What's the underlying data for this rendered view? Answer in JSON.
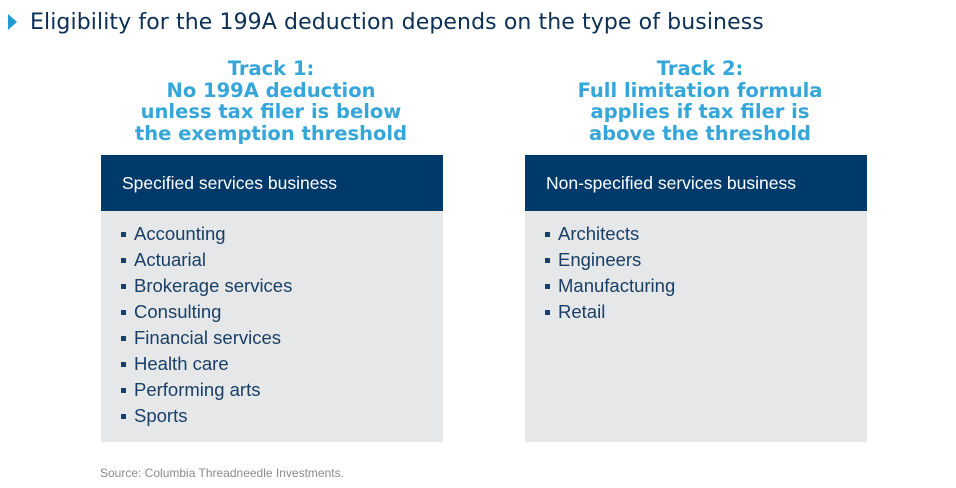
{
  "title": "Eligibility for the 199A deduction depends on the type of business",
  "colors": {
    "title": "#0b2f55",
    "accent": "#1e9bd7",
    "track_heading": "#35a6da",
    "panel_header": "#003a6b",
    "panel_body": "#e6e7e8",
    "list_text": "#1a3f66"
  },
  "tracks": [
    {
      "heading_lines": [
        "Track 1:",
        "No 199A deduction",
        "unless tax filer is below",
        "the exemption threshold"
      ],
      "panel_title": "Specified services business",
      "items": [
        "Accounting",
        "Actuarial",
        "Brokerage services",
        "Consulting",
        "Financial services",
        "Health care",
        "Performing arts",
        "Sports"
      ]
    },
    {
      "heading_lines": [
        "Track 2:",
        "Full limitation formula",
        "applies if tax filer is",
        "above the threshold"
      ],
      "panel_title": "Non-specified services business",
      "items": [
        "Architects",
        "Engineers",
        "Manufacturing",
        "Retail"
      ]
    }
  ],
  "source": "Source: Columbia Threadneedle Investments."
}
